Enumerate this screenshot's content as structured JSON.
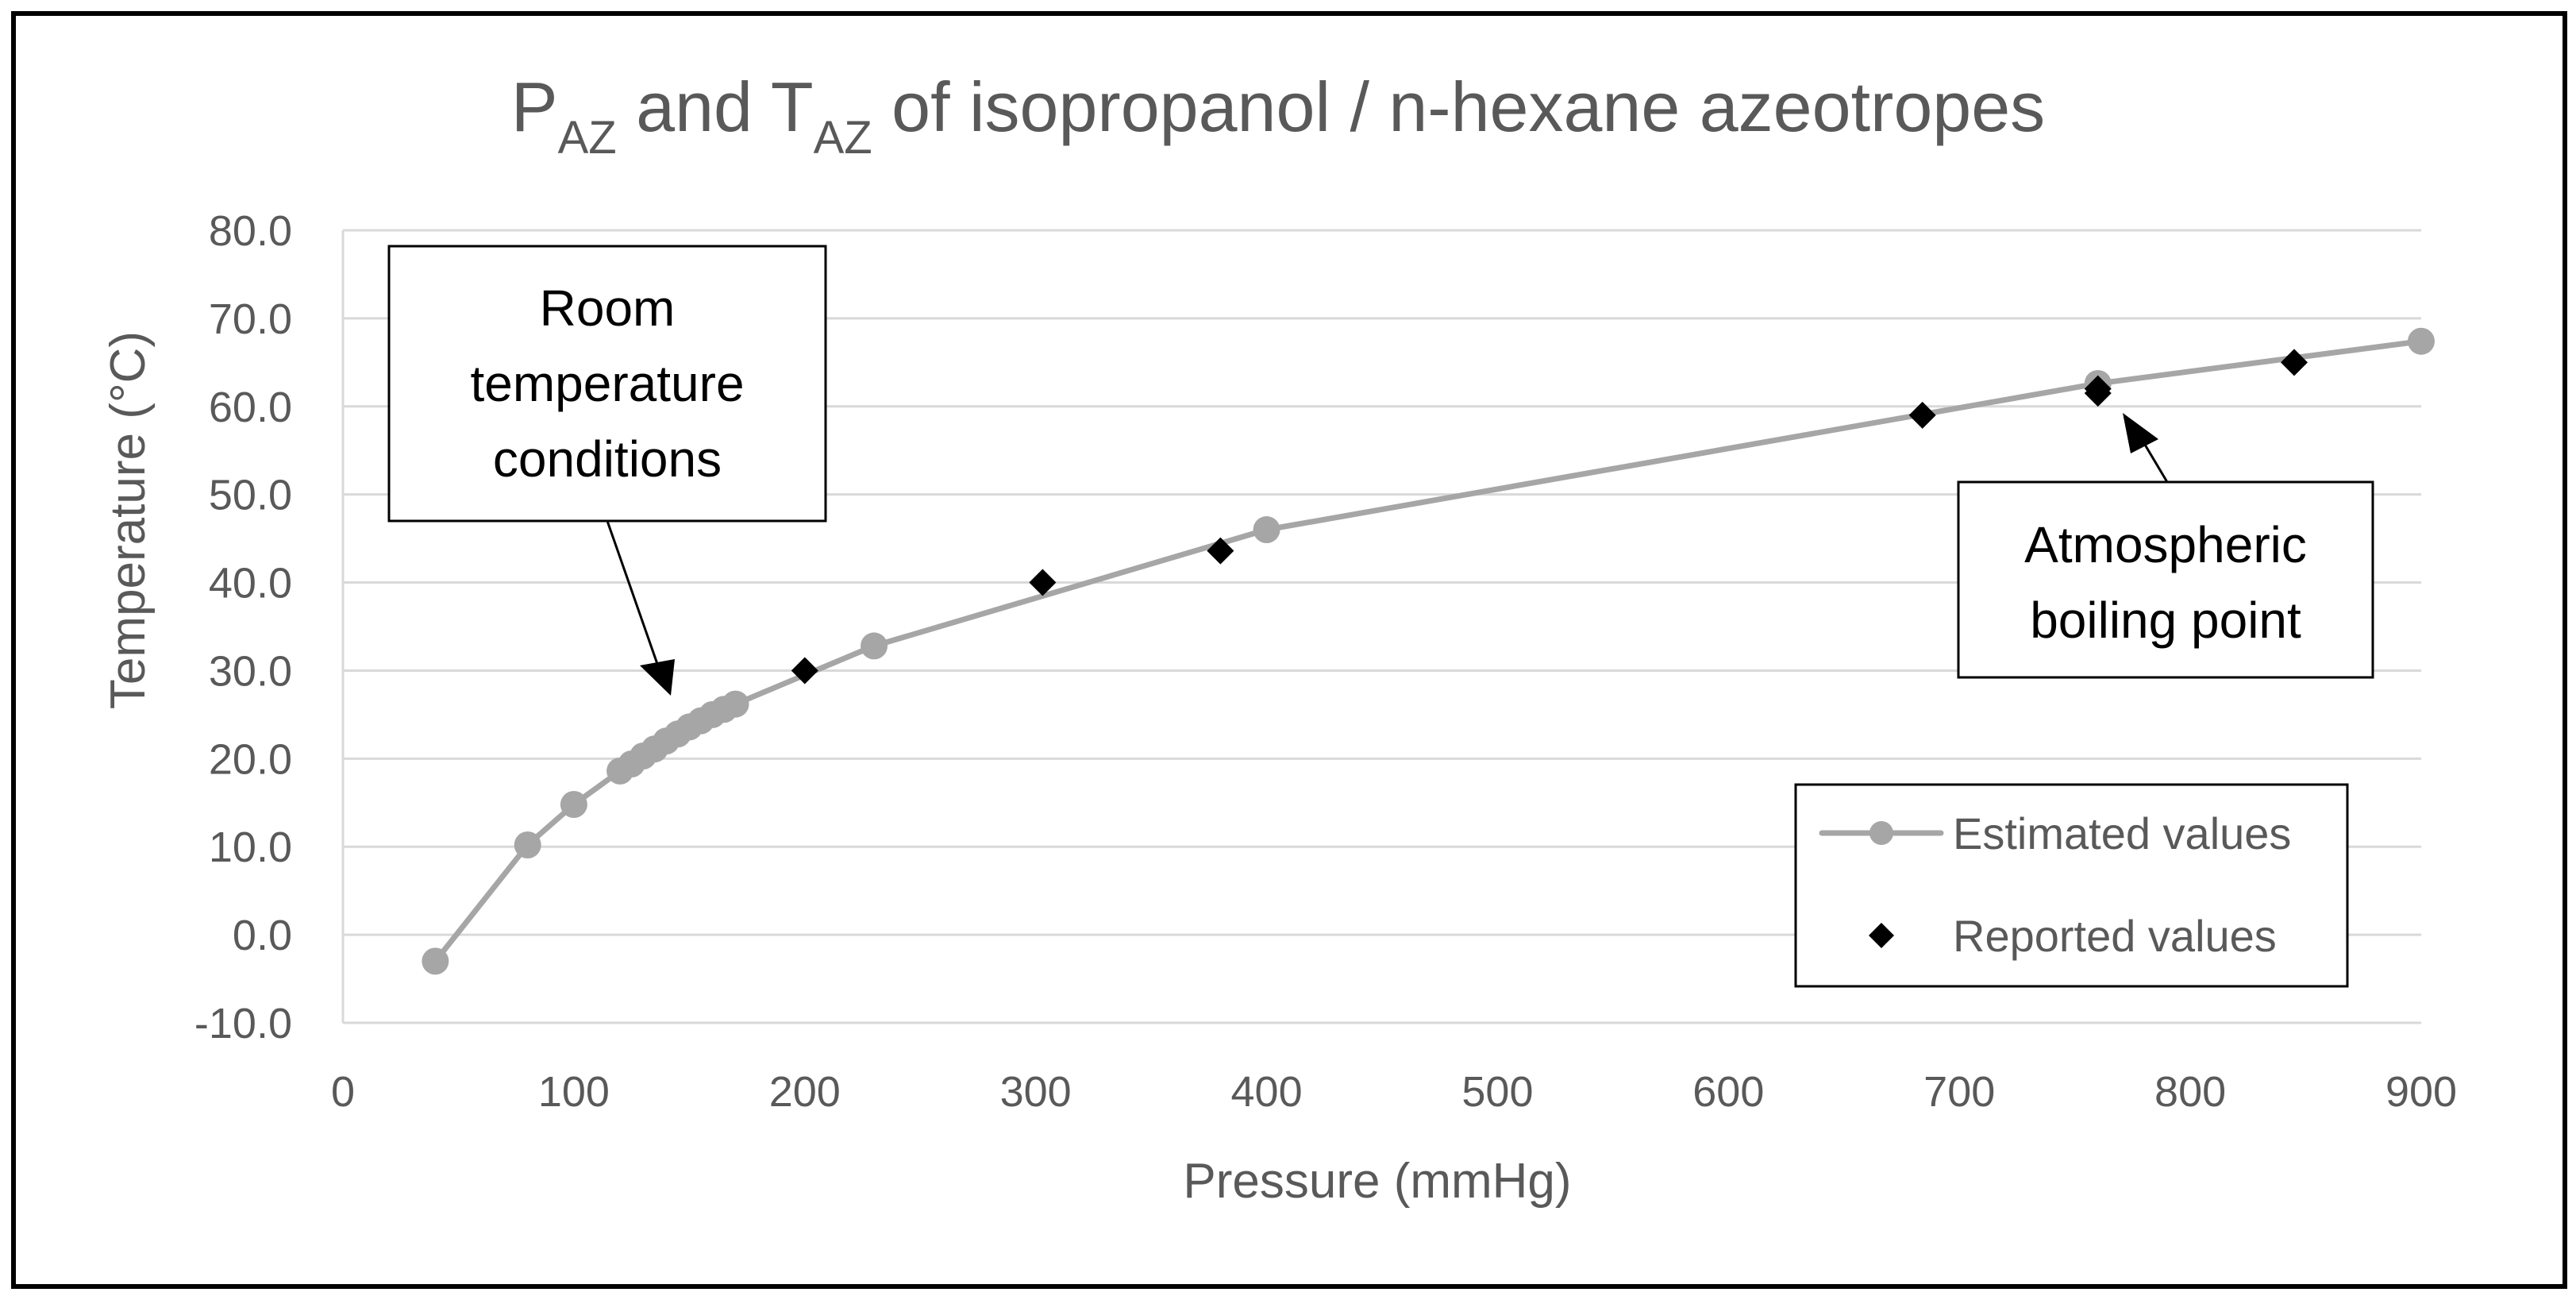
{
  "chart_data": {
    "type": "scatter",
    "title": {
      "main_p": "P",
      "sub_az_1": "AZ",
      "and_t": " and T",
      "sub_az_2": "AZ",
      "rest": " of isopropanol / n-hexane azeotropes"
    },
    "xlabel": "Pressure (mmHg)",
    "ylabel": "Temperature (°C)",
    "xlim": [
      0,
      900
    ],
    "ylim": [
      -10,
      80
    ],
    "x_ticks": [
      "0",
      "100",
      "200",
      "300",
      "400",
      "500",
      "600",
      "700",
      "800",
      "900"
    ],
    "y_ticks": [
      "-10.0",
      "0.0",
      "10.0",
      "20.0",
      "30.0",
      "40.0",
      "50.0",
      "60.0",
      "70.0",
      "80.0"
    ],
    "grid": "horizontal",
    "series": [
      {
        "name": "Estimated values",
        "marker": "circle",
        "line": true,
        "color": "#a6a6a6",
        "x": [
          40,
          80,
          100,
          120,
          125,
          130,
          135,
          140,
          145,
          150,
          155,
          160,
          165,
          170,
          230,
          400,
          760,
          900
        ],
        "y": [
          -3.0,
          10.2,
          14.8,
          18.6,
          19.4,
          20.3,
          21.1,
          22.0,
          22.8,
          23.6,
          24.3,
          25.0,
          25.6,
          26.2,
          32.8,
          46.0,
          62.6,
          67.4
        ]
      },
      {
        "name": "Reported values",
        "marker": "diamond",
        "line": false,
        "color": "#000000",
        "x": [
          200,
          303,
          380,
          684,
          760,
          760,
          845
        ],
        "y": [
          30.0,
          40.0,
          43.6,
          59.0,
          62.0,
          61.5,
          65.0
        ]
      }
    ],
    "annotations": [
      {
        "lines": [
          "Room",
          "temperature",
          "conditions"
        ]
      },
      {
        "lines": [
          "Atmospheric",
          "boiling point"
        ]
      }
    ],
    "legend_position": "bottom-right",
    "colors": {
      "text": "#595959",
      "grid": "#d9d9d9",
      "estimated": "#a6a6a6",
      "reported": "#000000"
    }
  }
}
